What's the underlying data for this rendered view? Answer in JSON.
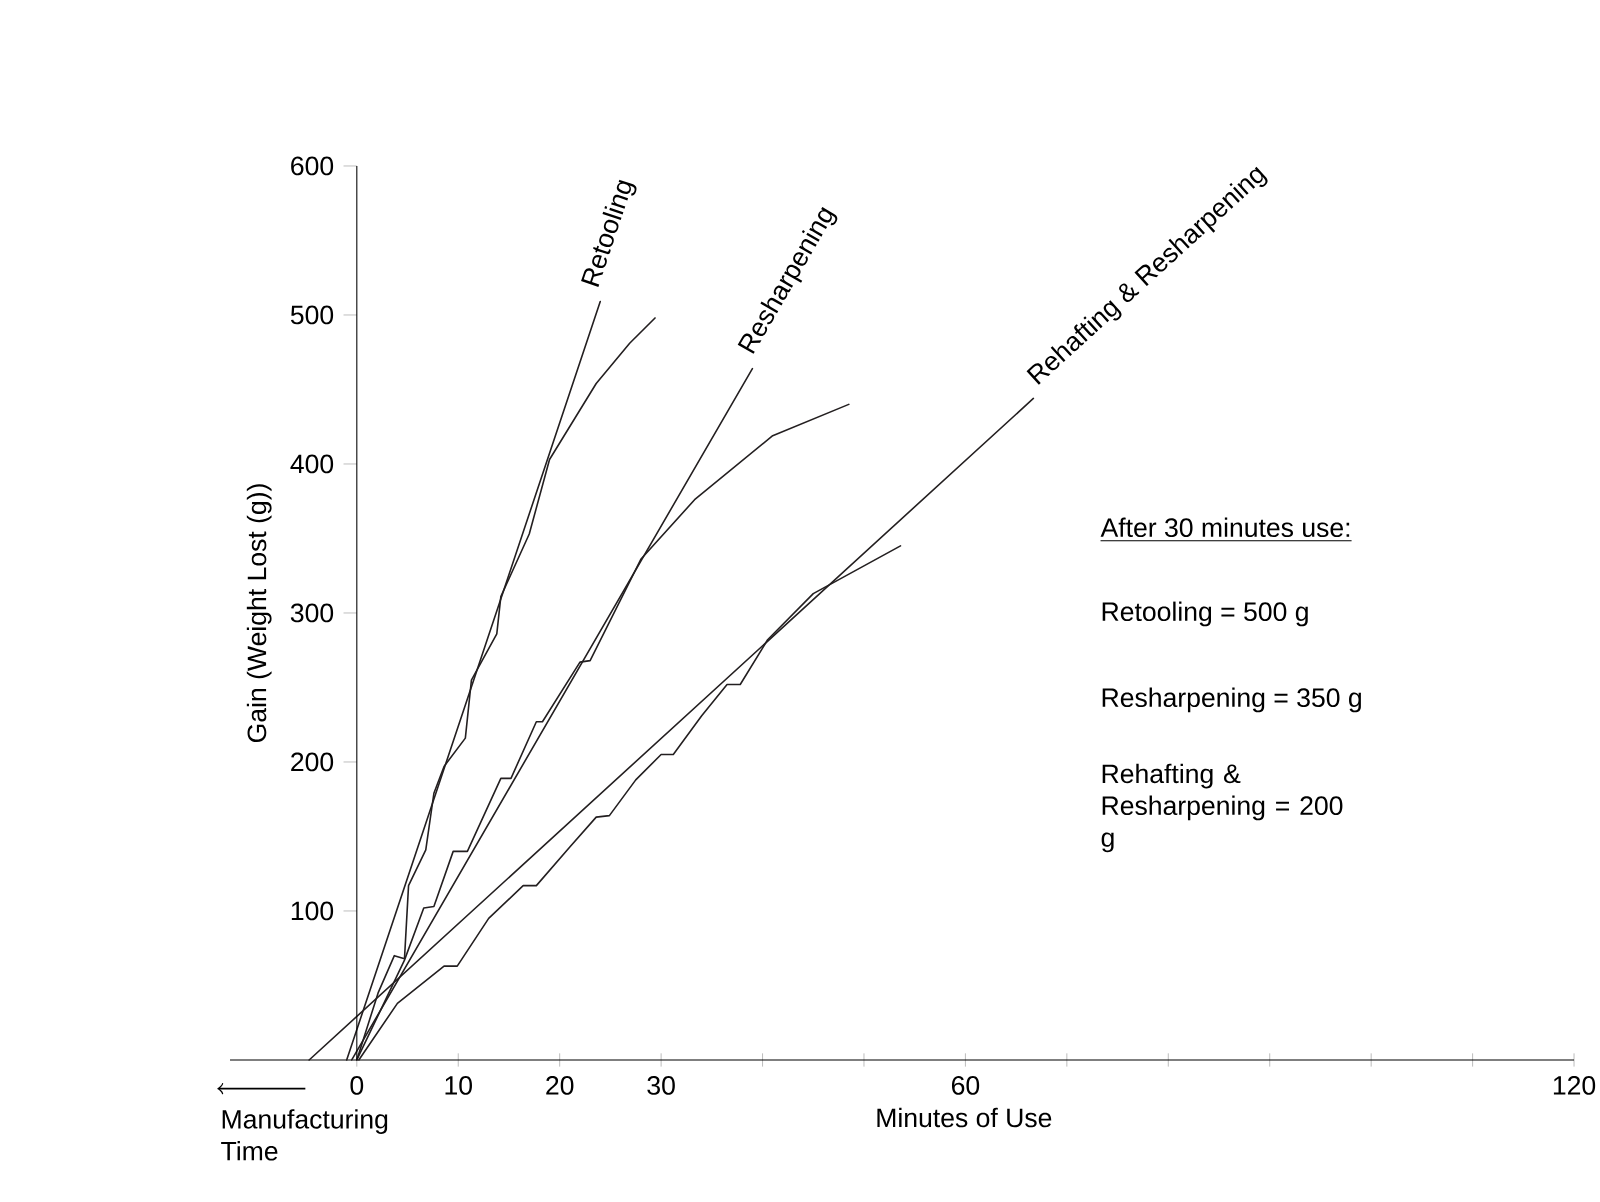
{
  "chart_data": {
    "type": "line",
    "xlabel": "Minutes of Use",
    "ylabel": "Gain (Weight Lost (g))",
    "xlim": [
      -12.5,
      120
    ],
    "ylim": [
      0,
      600
    ],
    "xticks": [
      0,
      10,
      20,
      30,
      {
        "value": 40,
        "label": null
      },
      {
        "value": 50,
        "label": null
      },
      60,
      {
        "value": 70,
        "label": null
      },
      {
        "value": 80,
        "label": null
      },
      {
        "value": 90,
        "label": null
      },
      {
        "value": 100,
        "label": null
      },
      {
        "value": 110,
        "label": null
      },
      120
    ],
    "yticks": [
      100,
      200,
      300,
      400,
      500,
      600
    ],
    "legend": false,
    "grid": false,
    "series": [
      {
        "name": "Retooling",
        "color": "#231f20",
        "x": [
          -1,
          24
        ],
        "values": [
          0,
          509
        ]
      },
      {
        "color": "#231f20",
        "x": [
          0,
          2.1,
          3.7,
          4.7,
          5.1,
          6.8,
          7.6,
          8.6,
          10.7,
          11.3,
          13.8,
          14.2,
          17,
          19,
          23.6,
          26.9,
          29.4
        ],
        "values": [
          0,
          45,
          70,
          68,
          117,
          141,
          179,
          197,
          216,
          255,
          286,
          311,
          353,
          403,
          454,
          481,
          498
        ]
      },
      {
        "name": "Resharpening",
        "color": "#231f20",
        "x": [
          -0.5,
          39
        ],
        "values": [
          0,
          464
        ]
      },
      {
        "color": "#231f20",
        "x": [
          0,
          4.7,
          6.6,
          7.6,
          9.5,
          10.9,
          14.2,
          15.2,
          17.7,
          18.3,
          22,
          23,
          28,
          33.3,
          41,
          48.5
        ],
        "values": [
          0,
          67,
          102,
          103,
          140,
          140,
          189,
          189,
          227,
          227,
          267,
          268,
          336,
          376,
          419,
          440
        ]
      },
      {
        "name": "Rehafting & Resharpening",
        "color": "#231f20",
        "x": [
          -4.7,
          66.7
        ],
        "values": [
          0,
          444
        ]
      },
      {
        "color": "#231f20",
        "x": [
          0.2,
          4,
          8.6,
          9.9,
          13,
          16.4,
          17.7,
          21,
          23.6,
          24.9,
          27.5,
          30,
          31.2,
          34,
          36.5,
          37.8,
          40.5,
          45,
          53.6
        ],
        "values": [
          0,
          38,
          63,
          63,
          95,
          117,
          117,
          143,
          163,
          164,
          188,
          205,
          205,
          231,
          252,
          252,
          282,
          313,
          345
        ]
      }
    ],
    "annotations": [
      "After 30 minutes use:",
      "Retooling = 500 g",
      "Resharpening = 350 g",
      "Rehafting & Resharpening = 200 g",
      "Manufacturing Time"
    ]
  }
}
